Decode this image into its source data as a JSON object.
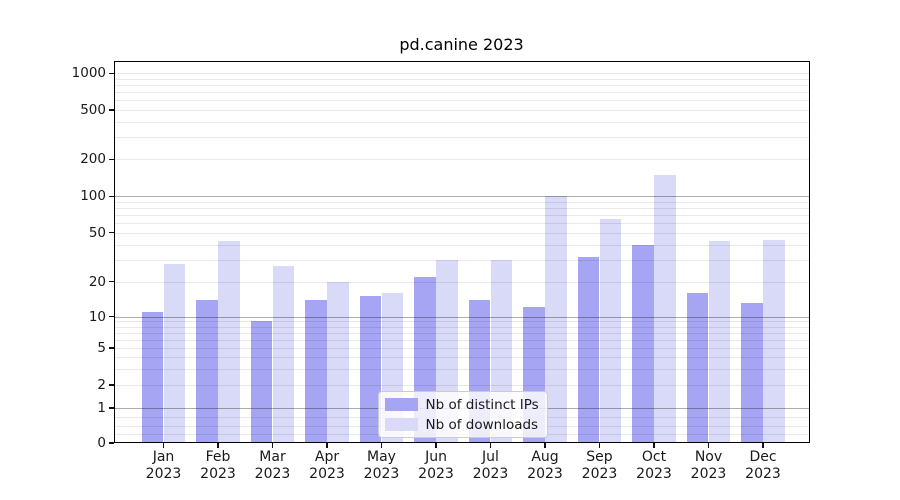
{
  "chart_data": {
    "type": "bar",
    "title": "pd.canine 2023",
    "categories": [
      "Jan 2023",
      "Feb 2023",
      "Mar 2023",
      "Apr 2023",
      "May 2023",
      "Jun 2023",
      "Jul 2023",
      "Aug 2023",
      "Sep 2023",
      "Oct 2023",
      "Nov 2023",
      "Dec 2023"
    ],
    "series": [
      {
        "name": "Nb of distinct IPs",
        "color": "#a5a5f3",
        "values": [
          11,
          14,
          9,
          14,
          15,
          22,
          14,
          12,
          32,
          40,
          16,
          13
        ]
      },
      {
        "name": "Nb of downloads",
        "color": "#d9d9f8",
        "values": [
          28,
          43,
          27,
          20,
          16,
          30,
          30,
          100,
          65,
          150,
          43,
          44
        ]
      }
    ],
    "y_axis": {
      "scale": "symlog",
      "ticks": [
        {
          "label": "1000",
          "value": 1000
        },
        {
          "label": "500",
          "value": 500
        },
        {
          "label": "200",
          "value": 200
        },
        {
          "label": "100",
          "value": 100
        },
        {
          "label": "50",
          "value": 50
        },
        {
          "label": "20",
          "value": 20
        },
        {
          "label": "10",
          "value": 10
        },
        {
          "label": "5",
          "value": 5
        },
        {
          "label": "2",
          "value": 2
        },
        {
          "label": "1",
          "value": 1
        },
        {
          "label": "0",
          "value": 0
        }
      ],
      "major_gridline_values": [
        1,
        10,
        100
      ],
      "minor_gridline_values": [
        0.25,
        0.5,
        0.75,
        2,
        3,
        4,
        5,
        6,
        7,
        8,
        9,
        20,
        30,
        40,
        50,
        60,
        70,
        80,
        90,
        200,
        300,
        400,
        500,
        600,
        700,
        800,
        900,
        1000
      ],
      "range": [
        0,
        1500
      ]
    },
    "legend": {
      "position": "lower center"
    },
    "grid": true
  },
  "colors": {
    "frame": "#000000",
    "text": "#1a1a1a",
    "background": "#ffffff"
  }
}
